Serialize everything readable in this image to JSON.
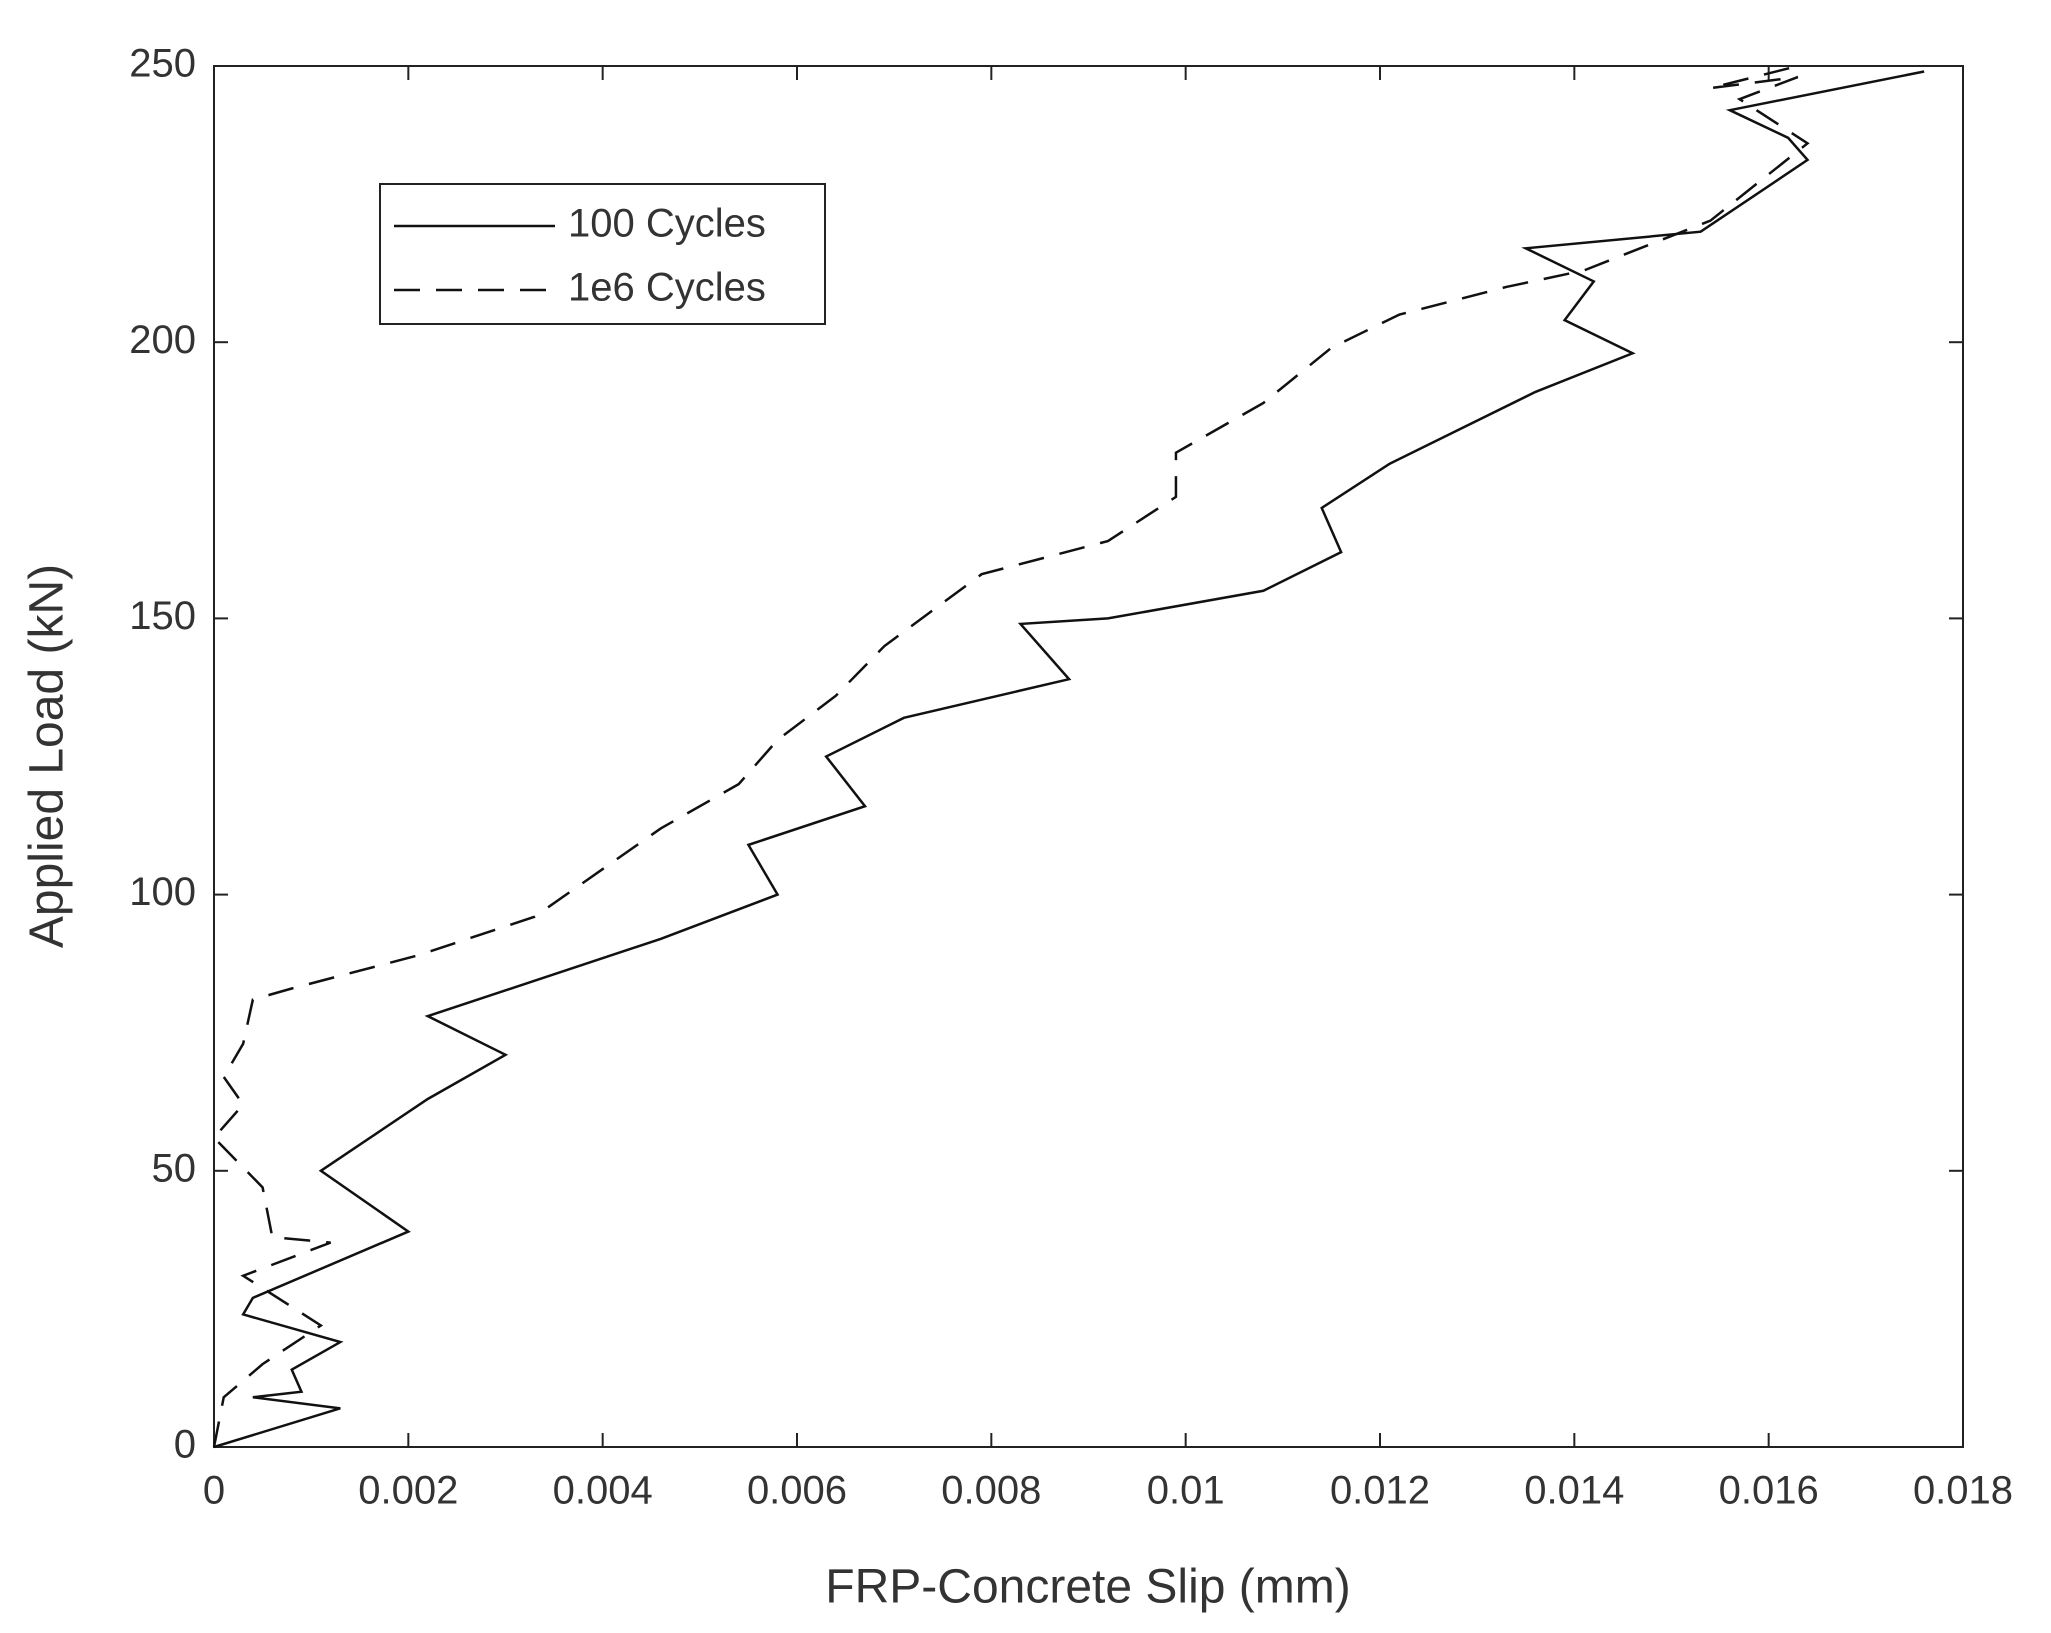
{
  "chart_data": {
    "type": "line",
    "xlabel": "FRP-Concrete Slip (mm)",
    "ylabel": "Applied Load (kN)",
    "xlim": [
      0,
      0.018
    ],
    "ylim": [
      0,
      250
    ],
    "xticks": [
      0,
      0.002,
      0.004,
      0.006,
      0.008,
      0.01,
      0.012,
      0.014,
      0.016,
      0.018
    ],
    "yticks": [
      0,
      50,
      100,
      150,
      200,
      250
    ],
    "legend": "upper-left",
    "series": [
      {
        "name": "100 Cycles",
        "color": "#111111",
        "style": "solid",
        "x": [
          0,
          0.0013,
          0.0004,
          0.0009,
          0.0008,
          0.0013,
          0.0003,
          0.0004,
          0.002,
          0.0011,
          0.0022,
          0.003,
          0.0022,
          0.0046,
          0.0058,
          0.0055,
          0.0067,
          0.0063,
          0.0071,
          0.0088,
          0.0083,
          0.0092,
          0.0108,
          0.0116,
          0.0114,
          0.0121,
          0.0136,
          0.0146,
          0.0139,
          0.0142,
          0.0135,
          0.0153,
          0.0164,
          0.0162,
          0.0156,
          0.0176
        ],
        "values": [
          0,
          7,
          9,
          10,
          14,
          19,
          24,
          27,
          39,
          50,
          63,
          71,
          78,
          92,
          100,
          109,
          116,
          125,
          132,
          139,
          149,
          150,
          155,
          162,
          170,
          178,
          191,
          198,
          204,
          211,
          217,
          220,
          233,
          237,
          242,
          249
        ]
      },
      {
        "name": "1e6 Cycles",
        "color": "#111111",
        "style": "dashed",
        "x": [
          0,
          0.0001,
          0.0005,
          0.0011,
          0.0003,
          0.0012,
          0.0006,
          0.0005,
          0,
          0.0003,
          0.0001,
          0.0003,
          0.0004,
          0.0008,
          0.0021,
          0.0033,
          0.0046,
          0.0054,
          0.0058,
          0.0064,
          0.0069,
          0.0079,
          0.0092,
          0.0099,
          0.0099,
          0.0108,
          0.0115,
          0.0122,
          0.0133,
          0.0141,
          0.0154,
          0.0164,
          0.0157,
          0.0163,
          0.0154,
          0.0163
        ],
        "values": [
          0,
          9,
          15,
          22,
          31,
          37,
          38,
          47,
          56,
          62,
          67,
          73,
          81,
          83,
          89,
          96,
          112,
          120,
          128,
          136,
          145,
          158,
          164,
          172,
          180,
          189,
          199,
          205,
          210,
          213,
          222,
          236,
          244,
          248,
          246,
          250
        ]
      }
    ]
  }
}
